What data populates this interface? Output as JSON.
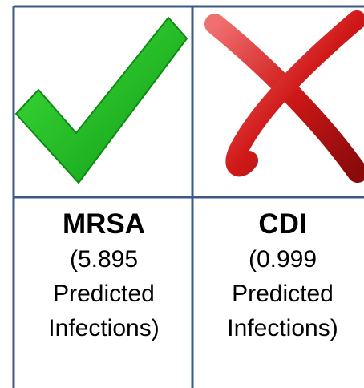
{
  "table": {
    "rows": [
      [
        {
          "title": "MRSA",
          "lines": [
            "(5.895",
            "Predicted",
            "Infections)"
          ]
        },
        {
          "title": "CDI",
          "lines": [
            "(0.999",
            "Predicted",
            "Infections)"
          ]
        }
      ]
    ]
  }
}
